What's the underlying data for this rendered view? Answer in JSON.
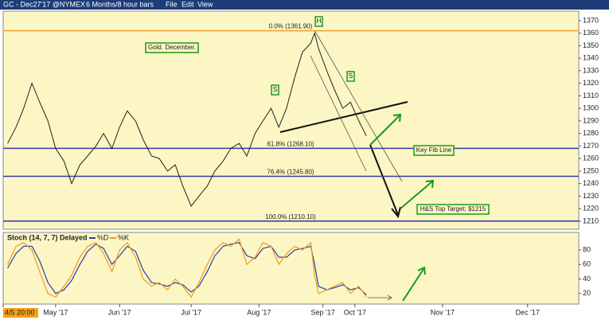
{
  "header": {
    "symbol": "GC - Dec27'17 @NYMEX",
    "period": "6 Months/8 hour bars",
    "menu": [
      "File",
      "Edit",
      "View"
    ]
  },
  "chart_data": [
    {
      "type": "line",
      "title": "Gold. December.",
      "x": [
        7,
        20,
        32,
        45,
        57,
        70,
        82,
        95,
        107,
        120,
        132,
        145,
        157,
        170,
        182,
        194,
        207,
        219,
        232,
        244,
        257,
        269,
        281,
        294,
        306,
        319,
        331,
        344,
        356,
        369,
        381,
        394,
        406,
        419,
        431,
        443,
        456,
        468,
        481,
        487,
        493,
        506,
        518,
        531,
        543,
        556,
        568
      ],
      "series": [
        {
          "name": "GC",
          "color": "#222222",
          "values": [
            1272,
            1285,
            1300,
            1320,
            1305,
            1290,
            1268,
            1258,
            1240,
            1255,
            1262,
            1270,
            1280,
            1268,
            1285,
            1298,
            1290,
            1275,
            1262,
            1260,
            1250,
            1255,
            1238,
            1222,
            1230,
            1238,
            1250,
            1258,
            1268,
            1272,
            1262,
            1280,
            1290,
            1300,
            1285,
            1300,
            1325,
            1345,
            1352,
            1360,
            1348,
            1330,
            1315,
            1300,
            1305,
            1290,
            1278
          ]
        }
      ],
      "xlim": [
        0,
        900
      ],
      "ylim": [
        1205,
        1375
      ],
      "yticks": [
        1210,
        1220,
        1230,
        1240,
        1250,
        1260,
        1270,
        1280,
        1290,
        1300,
        1310,
        1320,
        1330,
        1340,
        1350,
        1360,
        1370
      ],
      "hlines": [
        {
          "value": 1361.9,
          "label": "0.0% (1361.90)",
          "color": "#f0a030"
        },
        {
          "value": 1268.1,
          "label": "61.8% (1268.10)",
          "color": "#3a3aa8"
        },
        {
          "value": 1245.8,
          "label": "76.4% (1245.80)",
          "color": "#3a3aa8"
        },
        {
          "value": 1210.1,
          "label": "100.0% (1210.10)",
          "color": "#3a3aa8"
        }
      ],
      "annotations": [
        "Key Fib Line",
        "H&S Top Target: $1215",
        "H",
        "S",
        "S"
      ]
    },
    {
      "type": "line",
      "title": "Stoch (14, 7, 7) Delayed",
      "x": [
        7,
        20,
        32,
        45,
        57,
        70,
        82,
        95,
        107,
        120,
        132,
        145,
        157,
        170,
        182,
        194,
        207,
        219,
        232,
        244,
        257,
        269,
        281,
        294,
        306,
        319,
        331,
        344,
        356,
        369,
        381,
        394,
        406,
        419,
        431,
        443,
        456,
        468,
        481,
        487,
        493,
        506,
        518,
        531,
        543,
        556,
        568
      ],
      "series": [
        {
          "name": "%D",
          "color": "#2a3fa8",
          "values": [
            55,
            75,
            85,
            85,
            65,
            35,
            20,
            25,
            38,
            60,
            78,
            88,
            82,
            60,
            72,
            85,
            78,
            52,
            35,
            33,
            30,
            35,
            32,
            22,
            30,
            50,
            72,
            85,
            88,
            90,
            72,
            68,
            82,
            85,
            70,
            70,
            80,
            82,
            85,
            60,
            30,
            25,
            28,
            32,
            25,
            28,
            18
          ]
        },
        {
          "name": "%K",
          "color": "#f39a1c",
          "values": [
            60,
            85,
            90,
            80,
            50,
            20,
            15,
            30,
            45,
            70,
            85,
            90,
            75,
            50,
            80,
            90,
            70,
            40,
            30,
            35,
            25,
            40,
            30,
            15,
            35,
            60,
            80,
            90,
            85,
            95,
            60,
            70,
            90,
            85,
            60,
            75,
            85,
            80,
            90,
            45,
            20,
            25,
            30,
            35,
            20,
            30,
            15
          ]
        }
      ],
      "xlim": [
        0,
        900
      ],
      "ylim": [
        5,
        100
      ],
      "yticks": [
        20,
        40,
        60,
        80
      ],
      "xticks": [
        {
          "value": 0,
          "label": "4/5 20:00"
        },
        {
          "value": 82,
          "label": "May '17"
        },
        {
          "value": 182,
          "label": "Jun '17"
        },
        {
          "value": 294,
          "label": "Jul '17"
        },
        {
          "value": 400,
          "label": "Aug '17"
        },
        {
          "value": 500,
          "label": "Sep '17"
        },
        {
          "value": 550,
          "label": "Oct '17"
        },
        {
          "value": 687,
          "label": "Nov '17"
        },
        {
          "value": 820,
          "label": "Dec '17"
        }
      ]
    }
  ]
}
